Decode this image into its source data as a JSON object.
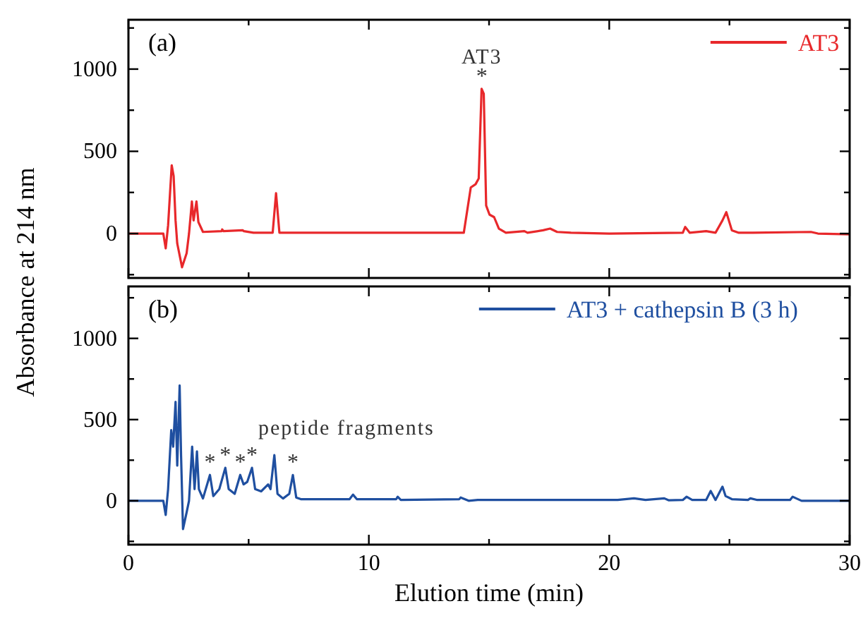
{
  "chart_data": [
    {
      "type": "line",
      "ylabel": "Absorbance at 214 nm",
      "xlim": [
        0,
        30
      ],
      "xticks": [
        0,
        {
          "value": 5,
          "label": null
        },
        10,
        {
          "value": 15,
          "label": null
        },
        20,
        {
          "value": 25,
          "label": null
        },
        30
      ],
      "ylim": [
        -270,
        1300
      ],
      "yticks": [
        {
          "value": -250,
          "label": null
        },
        0,
        {
          "value": 250,
          "label": null
        },
        500,
        {
          "value": 750,
          "label": null
        },
        1000,
        {
          "value": 1250,
          "label": null
        }
      ],
      "tick_labels": "y",
      "legend": "top right",
      "grid": false,
      "line_style": "solid",
      "annotations": [
        "(a)",
        {
          "text": "AT3",
          "x": 14.7,
          "y": 880
        },
        {
          "text": "*",
          "x": 14.7,
          "y": 880
        }
      ],
      "series": [
        {
          "name": "AT3",
          "color": "#e8282b",
          "x": [
            0,
            1.45,
            1.55,
            1.65,
            1.8,
            1.88,
            1.96,
            2.03,
            2.23,
            2.42,
            2.52,
            2.64,
            2.71,
            2.83,
            2.91,
            3.1,
            3.88,
            3.9,
            3.95,
            4.75,
            4.8,
            5.2,
            6.0,
            6.14,
            6.28,
            8,
            10,
            12,
            13.95,
            14.24,
            14.44,
            14.57,
            14.69,
            14.78,
            14.88,
            15.02,
            15.21,
            15.41,
            15.7,
            16.47,
            16.6,
            17.25,
            17.54,
            17.83,
            18.41,
            20,
            23.06,
            23.16,
            23.35,
            24.03,
            24.42,
            24.71,
            24.87,
            25.1,
            25.39,
            25.97,
            28.39,
            28.68,
            30
          ],
          "values": [
            0,
            0,
            -90,
            50,
            415,
            350,
            80,
            -60,
            -205,
            -120,
            0,
            195,
            80,
            195,
            70,
            10,
            15,
            25,
            15,
            20,
            15,
            5,
            5,
            245,
            5,
            5,
            5,
            5,
            5,
            280,
            300,
            335,
            880,
            850,
            170,
            115,
            100,
            30,
            5,
            15,
            5,
            20,
            30,
            10,
            5,
            0,
            5,
            40,
            5,
            15,
            5,
            80,
            130,
            20,
            5,
            5,
            10,
            0,
            -5
          ]
        }
      ]
    },
    {
      "type": "line",
      "xlabel": "Elution time (min)",
      "xlim": [
        0,
        30
      ],
      "xticks": [
        0,
        {
          "value": 5,
          "label": null
        },
        10,
        {
          "value": 15,
          "label": null
        },
        20,
        {
          "value": 25,
          "label": null
        },
        30
      ],
      "ylim": [
        -270,
        1320
      ],
      "yticks": [
        {
          "value": -250,
          "label": null
        },
        0,
        {
          "value": 250,
          "label": null
        },
        500,
        {
          "value": 750,
          "label": null
        },
        1000,
        {
          "value": 1250,
          "label": null
        }
      ],
      "legend": "top right",
      "grid": false,
      "line_style": "solid",
      "annotations": [
        "(b)",
        "peptide fragments",
        {
          "text": "*",
          "x": 3.39,
          "y": 159
        },
        {
          "text": "*",
          "x": 4.03,
          "y": 203
        },
        {
          "text": "*",
          "x": 4.65,
          "y": 159
        },
        {
          "text": "*",
          "x": 5.14,
          "y": 203
        },
        {
          "text": "*",
          "x": 6.84,
          "y": 159
        }
      ],
      "series": [
        {
          "name": "AT3 + cathepsin B (3 h)",
          "color": "#1f4fa0",
          "x": [
            0,
            1.45,
            1.55,
            1.65,
            1.78,
            1.86,
            1.96,
            2.03,
            2.13,
            2.19,
            2.27,
            2.42,
            2.52,
            2.65,
            2.75,
            2.85,
            2.93,
            3.1,
            3.39,
            3.53,
            3.78,
            4.03,
            4.17,
            4.42,
            4.65,
            4.79,
            4.94,
            5.14,
            5.27,
            5.52,
            5.81,
            5.91,
            6.07,
            6.2,
            6.43,
            6.69,
            6.84,
            6.98,
            7.17,
            9.2,
            9.34,
            9.5,
            11.14,
            11.2,
            11.33,
            13.76,
            13.82,
            14.15,
            14.53,
            20.35,
            21.03,
            21.51,
            22.29,
            22.48,
            23.06,
            23.22,
            23.45,
            24.03,
            24.22,
            24.42,
            24.71,
            24.84,
            25.1,
            25.77,
            25.87,
            26.16,
            27.52,
            27.63,
            28.0,
            30
          ],
          "values": [
            0,
            0,
            -87,
            72,
            435,
            333,
            609,
            217,
            710,
            275,
            -174,
            -72,
            0,
            333,
            72,
            304,
            72,
            14,
            159,
            29,
            72,
            203,
            72,
            43,
            159,
            101,
            116,
            203,
            72,
            58,
            101,
            72,
            281,
            43,
            14,
            43,
            159,
            20,
            10,
            10,
            38,
            10,
            10,
            25,
            5,
            10,
            20,
            0,
            5,
            5,
            15,
            5,
            15,
            3,
            5,
            25,
            5,
            5,
            60,
            5,
            87,
            29,
            10,
            5,
            15,
            5,
            5,
            25,
            0,
            0
          ]
        }
      ]
    }
  ]
}
